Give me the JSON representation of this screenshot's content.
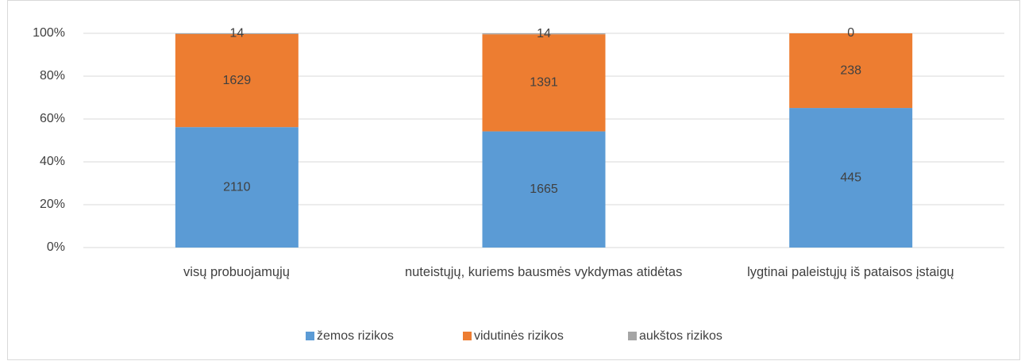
{
  "chart_data": {
    "type": "bar",
    "stack": "percent",
    "categories": [
      "visų probuojamųjų",
      "nuteistųjų, kuriems bausmės vykdymas atidėtas",
      "lygtinai paleistųjų iš pataisos įstaigų"
    ],
    "series": [
      {
        "name": "žemos rizikos",
        "color": "#5b9bd5",
        "values": [
          2110,
          1665,
          445
        ]
      },
      {
        "name": "vidutinės rizikos",
        "color": "#ed7d31",
        "values": [
          1629,
          1391,
          238
        ]
      },
      {
        "name": "aukštos rizikos",
        "color": "#a5a5a5",
        "values": [
          14,
          14,
          0
        ]
      }
    ],
    "ylim": [
      0,
      100
    ],
    "yticks": [
      {
        "value": 0,
        "label": "0%"
      },
      {
        "value": 20,
        "label": "20%"
      },
      {
        "value": 40,
        "label": "40%"
      },
      {
        "value": 60,
        "label": "60%"
      },
      {
        "value": 80,
        "label": "80%"
      },
      {
        "value": 100,
        "label": "100%"
      }
    ],
    "grid": true,
    "legend": "bottom"
  }
}
